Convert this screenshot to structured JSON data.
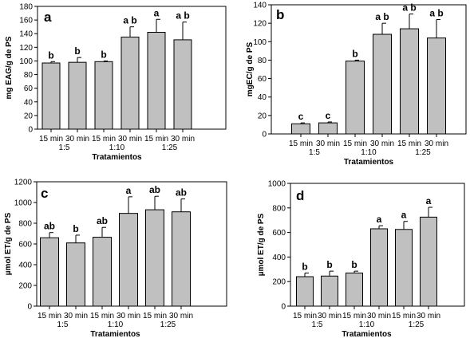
{
  "chart_data": [
    {
      "type": "bar",
      "panel_label": "a",
      "ylabel": "mg EAG/g de PS",
      "xlabel": "Tratamientos",
      "ylim": [
        0,
        180
      ],
      "yticks": [
        0,
        20,
        40,
        60,
        80,
        100,
        120,
        140,
        160,
        180
      ],
      "categories": [
        "15 min",
        "30 min",
        "15 min",
        "30 min",
        "15 min",
        "30 min"
      ],
      "groups": [
        "1:5",
        "1:10",
        "1:25"
      ],
      "values": [
        97,
        98,
        99,
        135,
        142,
        131
      ],
      "errors": [
        2,
        7,
        1,
        15,
        19,
        26
      ],
      "significance": [
        "b",
        "b",
        "b",
        "a b",
        "a",
        "a b"
      ],
      "bar_color": "#c0c0c0",
      "grid": false
    },
    {
      "type": "bar",
      "panel_label": "b",
      "ylabel": "mgEC/g de PS",
      "xlabel": "Tratamientos",
      "ylim": [
        0,
        140
      ],
      "yticks": [
        0,
        20,
        40,
        60,
        80,
        100,
        120,
        140
      ],
      "categories": [
        "15 min",
        "30 min",
        "15 min",
        "30 min",
        "15 min",
        "30 min"
      ],
      "groups": [
        "1:5",
        "1:10",
        "1:25"
      ],
      "values": [
        11,
        12,
        79,
        108,
        114,
        104
      ],
      "errors": [
        1,
        1,
        1,
        12,
        16,
        20
      ],
      "significance": [
        "c",
        "c",
        "b",
        "a b",
        "a b",
        "a b"
      ],
      "bar_color": "#c0c0c0",
      "grid": false
    },
    {
      "type": "bar",
      "panel_label": "c",
      "ylabel": "µmol ET/g de PS",
      "xlabel": "Tratamientos",
      "ylim": [
        0,
        1200
      ],
      "yticks": [
        0,
        200,
        400,
        600,
        800,
        1000,
        1200
      ],
      "categories": [
        "15 min",
        "30 min",
        "15 min",
        "30 min",
        "15 min",
        "30 min"
      ],
      "groups": [
        "1:5",
        "1:10",
        "1:25"
      ],
      "values": [
        660,
        610,
        665,
        895,
        930,
        910
      ],
      "errors": [
        50,
        75,
        95,
        160,
        130,
        125
      ],
      "significance": [
        "ab",
        "b",
        "ab",
        "a",
        "ab",
        "ab"
      ],
      "bar_color": "#c0c0c0",
      "grid": false
    },
    {
      "type": "bar",
      "panel_label": "d",
      "ylabel": "µmol ET/g de PS",
      "xlabel": "Tratamientos",
      "ylim": [
        0,
        1000
      ],
      "yticks": [
        0,
        200,
        400,
        600,
        800,
        1000
      ],
      "categories": [
        "15 min",
        "30 min",
        "15 min",
        "30 min",
        "15 min",
        "30 min"
      ],
      "groups": [
        "1:5",
        "1:10",
        "1:25"
      ],
      "values": [
        240,
        245,
        270,
        630,
        625,
        725
      ],
      "errors": [
        30,
        40,
        15,
        25,
        65,
        80
      ],
      "significance": [
        "b",
        "b",
        "b",
        "a",
        "a",
        "a"
      ],
      "bar_color": "#c0c0c0",
      "grid": false
    }
  ]
}
